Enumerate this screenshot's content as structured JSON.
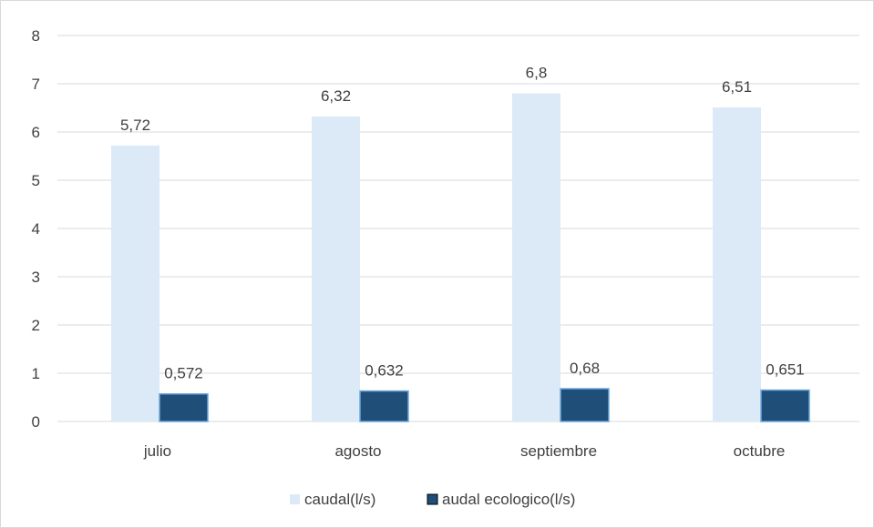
{
  "chart_data": {
    "type": "bar",
    "categories": [
      "julio",
      "agosto",
      "septiembre",
      "octubre"
    ],
    "series": [
      {
        "name": "caudal(l/s)",
        "values": [
          5.72,
          6.32,
          6.8,
          6.51
        ],
        "labels": [
          "5,72",
          "6,32",
          "6,8",
          "6,51"
        ],
        "color": "#dce9f7"
      },
      {
        "name": "audal ecologico(l/s)",
        "values": [
          0.572,
          0.632,
          0.68,
          0.651
        ],
        "labels": [
          "0,572",
          "0,632",
          "0,68",
          "0,651"
        ],
        "color": "#1f4e79"
      }
    ],
    "title": "",
    "xlabel": "",
    "ylabel": "",
    "ylim": [
      0,
      8
    ],
    "yticks": [
      0,
      1,
      2,
      3,
      4,
      5,
      6,
      7,
      8
    ],
    "grid": true,
    "legend": "bottom",
    "gridline_color": "#d9d9d9",
    "series_border_color": "#6fa8dc"
  }
}
